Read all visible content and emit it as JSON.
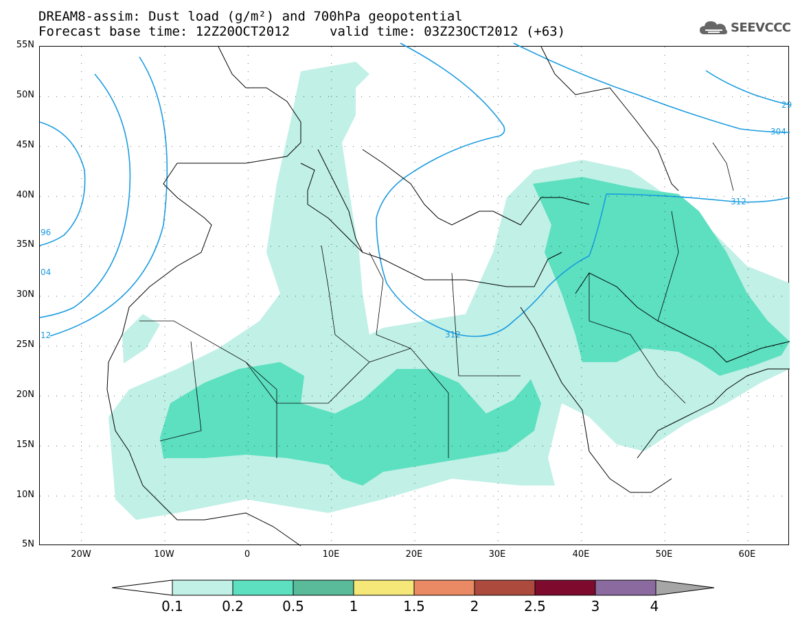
{
  "title": {
    "line1": "DREAM8-assim: Dust load (g/m²) and 700hPa geopotential",
    "line2_base": "Forecast base time: 12Z20OCT2012",
    "line2_valid": "valid time: 03Z23OCT2012 (+63)"
  },
  "logo": {
    "text": "SEEVCCC",
    "icon": "cloud-icon"
  },
  "axes": {
    "lat_labels": [
      "55N",
      "50N",
      "45N",
      "40N",
      "35N",
      "30N",
      "25N",
      "20N",
      "15N",
      "10N",
      "5N"
    ],
    "lon_labels": [
      "20W",
      "10W",
      "0",
      "10E",
      "20E",
      "30E",
      "40E",
      "50E",
      "60E"
    ],
    "lat_range": [
      5,
      55
    ],
    "lon_range": [
      -25,
      65
    ]
  },
  "contours": {
    "labels": [
      "96",
      "04",
      "12",
      "312",
      "312",
      "304",
      "29"
    ],
    "color": "#1a9be0"
  },
  "colorbar": {
    "labels": [
      "0.1",
      "0.2",
      "0.5",
      "1",
      "1.5",
      "2",
      "2.5",
      "3",
      "4"
    ],
    "colors": [
      "#c0f0e6",
      "#5ce0bf",
      "#5abb9b",
      "#f5e878",
      "#ea8a64",
      "#ad4a3e",
      "#7e0b2e",
      "#8b6aa0"
    ],
    "under_color": "#ffffff",
    "over_color": "#a6a6a6"
  }
}
